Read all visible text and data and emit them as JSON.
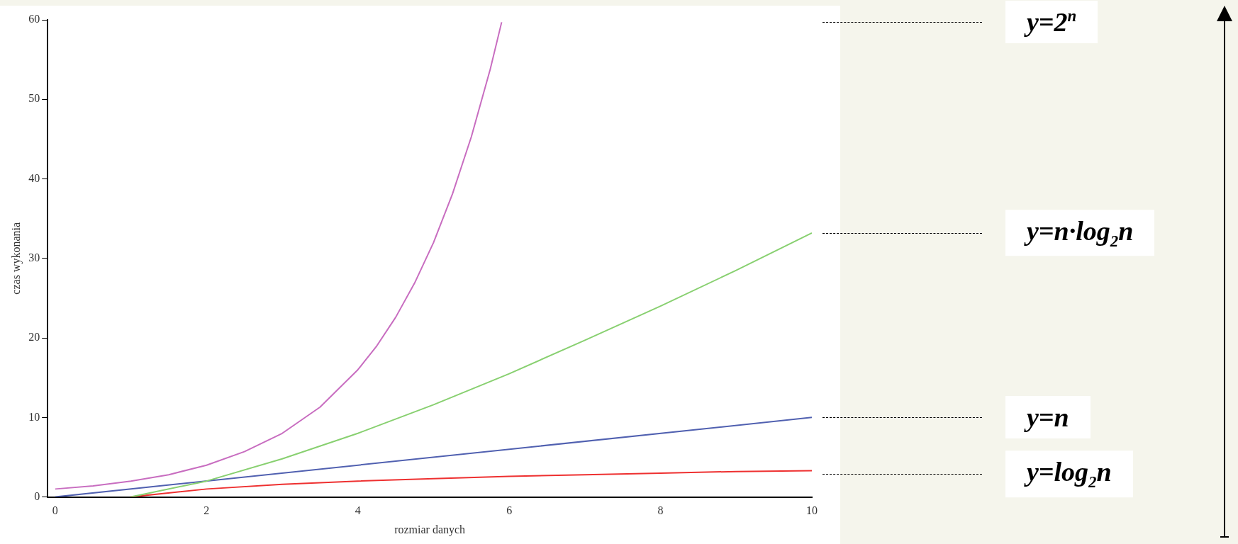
{
  "chart_data": {
    "type": "line",
    "xlabel": "rozmiar danych",
    "ylabel": "czas wykonania",
    "xlim": [
      -0.1,
      10
    ],
    "ylim": [
      0,
      60
    ],
    "xticks": [
      0,
      2,
      4,
      6,
      8,
      10
    ],
    "yticks": [
      0,
      10,
      20,
      30,
      40,
      50,
      60
    ],
    "grid": false,
    "legend": false,
    "marker": "none",
    "series": [
      {
        "name": "y=2$^{n}$",
        "color": "#c86dc0",
        "x": [
          0,
          0.5,
          1,
          1.5,
          2,
          2.5,
          3,
          3.5,
          4,
          4.25,
          4.5,
          4.75,
          5,
          5.25,
          5.5,
          5.75,
          5.9
        ],
        "values": [
          1,
          1.4,
          2,
          2.8,
          4,
          5.7,
          8,
          11.3,
          16,
          19,
          22.6,
          26.9,
          32,
          38.1,
          45.3,
          53.8,
          59.7
        ]
      },
      {
        "name": "y=n·log$_{2}$n",
        "color": "#88d070",
        "x": [
          1,
          2,
          3,
          4,
          5,
          6,
          7,
          8,
          9,
          10
        ],
        "values": [
          0,
          2,
          4.8,
          8,
          11.6,
          15.5,
          19.7,
          24,
          28.5,
          33.2
        ]
      },
      {
        "name": "y=n",
        "color": "#5060b0",
        "x": [
          0,
          10
        ],
        "values": [
          0,
          10
        ]
      },
      {
        "name": "y=log$_{2}$n",
        "color": "#ee3030",
        "x": [
          1,
          2,
          3,
          4,
          5,
          6,
          7,
          8,
          9,
          10
        ],
        "values": [
          0,
          1,
          1.6,
          2,
          2.3,
          2.6,
          2.8,
          3,
          3.2,
          3.3
        ]
      }
    ]
  }
}
